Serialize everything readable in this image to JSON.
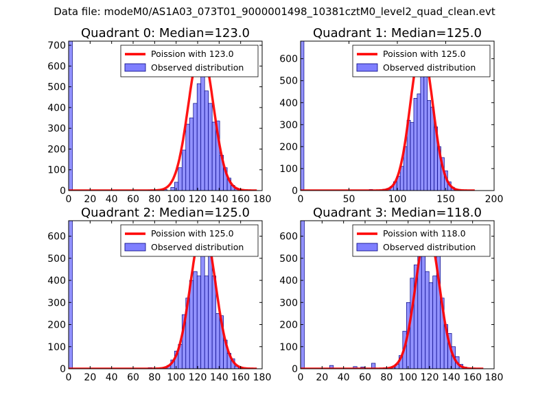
{
  "suptitle": "Data file: modeM0/AS1A03_073T01_9000001498_10381cztM0_level2_quad_clean.evt",
  "colors": {
    "hist": "#7f7fff",
    "hist_edge": "#000080",
    "fit": "#ff0000"
  },
  "chart_data": [
    {
      "type": "bar",
      "title": "Quadrant 0: Median=123.0",
      "median": 123.0,
      "xlim": [
        0,
        180
      ],
      "ylim": [
        0,
        720
      ],
      "xticks": [
        0,
        20,
        40,
        60,
        80,
        100,
        120,
        140,
        160,
        180
      ],
      "yticks": [
        0,
        100,
        200,
        300,
        400,
        500,
        600,
        700
      ],
      "legend": {
        "location": "top-right",
        "entries": [
          "Poission with 123.0",
          "Observed distribution"
        ]
      },
      "hist_bins": [
        [
          0,
          3.5,
          720
        ],
        [
          74,
          77.5,
          3
        ],
        [
          77.5,
          81,
          3
        ],
        [
          88,
          91.5,
          5
        ],
        [
          95,
          98.5,
          15
        ],
        [
          98.5,
          102,
          40
        ],
        [
          102,
          105.5,
          110
        ],
        [
          105.5,
          109,
          195
        ],
        [
          109,
          112.5,
          320
        ],
        [
          112.5,
          116,
          350
        ],
        [
          116,
          119.5,
          420
        ],
        [
          119.5,
          123,
          515
        ],
        [
          123,
          126.5,
          690
        ],
        [
          126.5,
          130,
          480
        ],
        [
          130,
          133.5,
          420
        ],
        [
          133.5,
          137,
          330
        ],
        [
          137,
          140.5,
          335
        ],
        [
          140.5,
          144,
          170
        ],
        [
          144,
          147.5,
          110
        ],
        [
          147.5,
          151,
          60
        ],
        [
          151,
          154.5,
          25
        ],
        [
          154.5,
          158,
          10
        ],
        [
          158,
          161.5,
          3
        ]
      ],
      "fit": {
        "label": "Poission with 123.0",
        "x_range": [
          0,
          175
        ],
        "peak": 690,
        "center": 123,
        "sigma": 11.5
      }
    },
    {
      "type": "bar",
      "title": "Quadrant 1: Median=125.0",
      "median": 125.0,
      "xlim": [
        0,
        200
      ],
      "ylim": [
        0,
        680
      ],
      "xticks": [
        0,
        50,
        100,
        150,
        200
      ],
      "yticks": [
        0,
        100,
        200,
        300,
        400,
        500,
        600
      ],
      "legend": {
        "location": "top-right",
        "entries": [
          "Poission with 125.0",
          "Observed distribution"
        ]
      },
      "hist_bins": [
        [
          0,
          3.5,
          680
        ],
        [
          71,
          74.5,
          5
        ],
        [
          85,
          88.5,
          6
        ],
        [
          89,
          92.5,
          10
        ],
        [
          92.5,
          96,
          18
        ],
        [
          96,
          99.5,
          40
        ],
        [
          99.5,
          103,
          65
        ],
        [
          103,
          106.5,
          110
        ],
        [
          106.5,
          110,
          200
        ],
        [
          110,
          113.5,
          320
        ],
        [
          113.5,
          117,
          310
        ],
        [
          117,
          120.5,
          420
        ],
        [
          120.5,
          124,
          440
        ],
        [
          124,
          127.5,
          660
        ],
        [
          127.5,
          131,
          530
        ],
        [
          131,
          134.5,
          410
        ],
        [
          134.5,
          138,
          380
        ],
        [
          138,
          141.5,
          290
        ],
        [
          141.5,
          145,
          200
        ],
        [
          145,
          148.5,
          150
        ],
        [
          148.5,
          152,
          90
        ],
        [
          152,
          155.5,
          40
        ],
        [
          155.5,
          159,
          15
        ],
        [
          159,
          162.5,
          5
        ],
        [
          162.5,
          166,
          3
        ]
      ],
      "fit": {
        "label": "Poission with 125.0",
        "x_range": [
          0,
          180
        ],
        "peak": 655,
        "center": 125,
        "sigma": 11.5
      }
    },
    {
      "type": "bar",
      "title": "Quadrant 2: Median=125.0",
      "median": 125.0,
      "xlim": [
        0,
        180
      ],
      "ylim": [
        0,
        670
      ],
      "xticks": [
        0,
        20,
        40,
        60,
        80,
        100,
        120,
        140,
        160,
        180
      ],
      "yticks": [
        0,
        100,
        200,
        300,
        400,
        500,
        600
      ],
      "legend": {
        "location": "top-right",
        "entries": [
          "Poission with 125.0",
          "Observed distribution"
        ]
      },
      "hist_bins": [
        [
          0,
          3.5,
          670
        ],
        [
          74,
          77.5,
          5
        ],
        [
          88,
          91.5,
          5
        ],
        [
          91.5,
          95,
          15
        ],
        [
          95,
          98.5,
          40
        ],
        [
          98.5,
          102,
          80
        ],
        [
          102,
          105.5,
          110
        ],
        [
          105.5,
          109,
          245
        ],
        [
          109,
          112.5,
          320
        ],
        [
          112.5,
          116,
          400
        ],
        [
          116,
          119.5,
          440
        ],
        [
          119.5,
          123,
          420
        ],
        [
          123,
          126.5,
          580
        ],
        [
          126.5,
          130,
          420
        ],
        [
          130,
          133.5,
          600
        ],
        [
          133.5,
          137,
          420
        ],
        [
          137,
          140.5,
          250
        ],
        [
          140.5,
          144,
          240
        ],
        [
          144,
          147.5,
          130
        ],
        [
          147.5,
          151,
          70
        ],
        [
          151,
          154.5,
          45
        ],
        [
          154.5,
          158,
          12
        ],
        [
          158,
          161.5,
          5
        ]
      ],
      "fit": {
        "label": "Poission with 125.0",
        "x_range": [
          0,
          175
        ],
        "peak": 645,
        "center": 125,
        "sigma": 11.5
      }
    },
    {
      "type": "bar",
      "title": "Quadrant 3: Median=118.0",
      "median": 118.0,
      "xlim": [
        0,
        180
      ],
      "ylim": [
        0,
        670
      ],
      "xticks": [
        0,
        20,
        40,
        60,
        80,
        100,
        120,
        140,
        160,
        180
      ],
      "yticks": [
        0,
        100,
        200,
        300,
        400,
        500,
        600
      ],
      "legend": {
        "location": "top-right",
        "entries": [
          "Poission with 118.0",
          "Observed distribution"
        ]
      },
      "hist_bins": [
        [
          0,
          3.5,
          670
        ],
        [
          27,
          30.5,
          15
        ],
        [
          49,
          52.5,
          10
        ],
        [
          56,
          59.5,
          8
        ],
        [
          66,
          69.5,
          25
        ],
        [
          77,
          80.5,
          5
        ],
        [
          84,
          87.5,
          8
        ],
        [
          88,
          91.5,
          20
        ],
        [
          91.5,
          95,
          60
        ],
        [
          95,
          98.5,
          170
        ],
        [
          98.5,
          102,
          300
        ],
        [
          102,
          105.5,
          410
        ],
        [
          105.5,
          109,
          470
        ],
        [
          109,
          112.5,
          520
        ],
        [
          112.5,
          116,
          600
        ],
        [
          116,
          119.5,
          440
        ],
        [
          119.5,
          123,
          390
        ],
        [
          123,
          126.5,
          420
        ],
        [
          126.5,
          130,
          560
        ],
        [
          130,
          133.5,
          320
        ],
        [
          133.5,
          137,
          200
        ],
        [
          137,
          140.5,
          160
        ],
        [
          140.5,
          144,
          100
        ],
        [
          144,
          147.5,
          55
        ],
        [
          147.5,
          151,
          20
        ],
        [
          151,
          154.5,
          8
        ]
      ],
      "fit": {
        "label": "Poission with 118.0",
        "x_range": [
          0,
          170
        ],
        "peak": 630,
        "center": 118,
        "sigma": 11.0
      }
    }
  ]
}
